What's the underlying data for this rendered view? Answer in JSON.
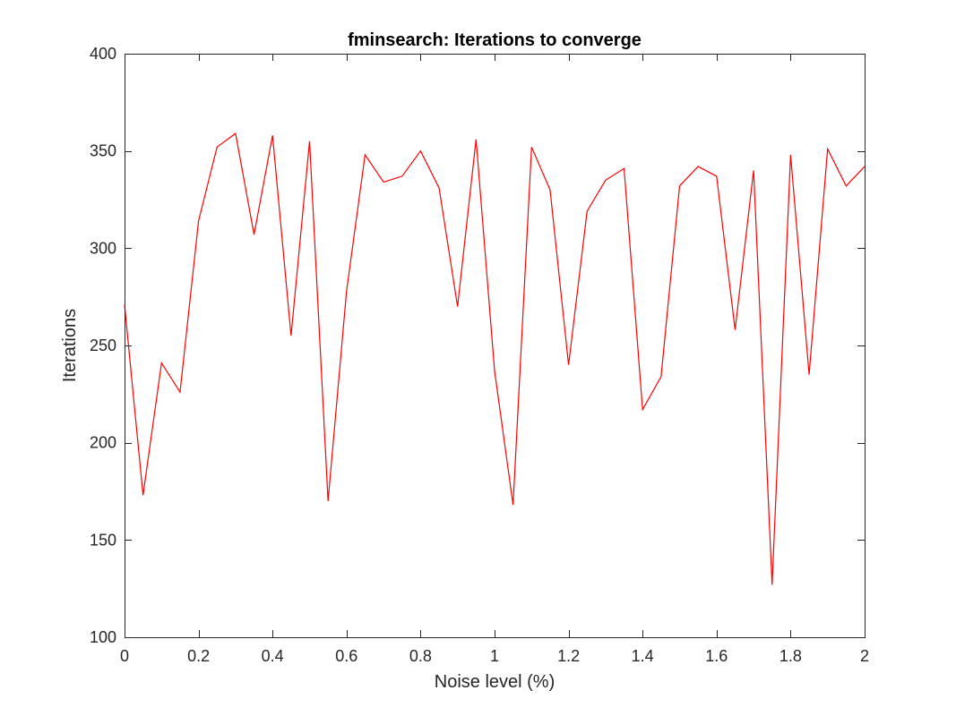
{
  "chart_data": {
    "type": "line",
    "title": "fminsearch: Iterations to converge",
    "xlabel": "Noise level (%)",
    "ylabel": "Iterations",
    "xlim": [
      0,
      2
    ],
    "ylim": [
      100,
      400
    ],
    "xticks": [
      0,
      0.2,
      0.4,
      0.6,
      0.8,
      1,
      1.2,
      1.4,
      1.6,
      1.8,
      2
    ],
    "xtick_labels": [
      "0",
      "0.2",
      "0.4",
      "0.6",
      "0.8",
      "1",
      "1.2",
      "1.4",
      "1.6",
      "1.8",
      "2"
    ],
    "yticks": [
      100,
      150,
      200,
      250,
      300,
      350,
      400
    ],
    "ytick_labels": [
      "100",
      "150",
      "200",
      "250",
      "300",
      "350",
      "400"
    ],
    "grid": false,
    "box": true,
    "series": [
      {
        "color": "#ff0000",
        "x": [
          0,
          0.05,
          0.1,
          0.15,
          0.2,
          0.25,
          0.3,
          0.35,
          0.4,
          0.45,
          0.5,
          0.55,
          0.6,
          0.65,
          0.7,
          0.75,
          0.8,
          0.85,
          0.9,
          0.95,
          1.0,
          1.05,
          1.1,
          1.15,
          1.2,
          1.25,
          1.3,
          1.35,
          1.4,
          1.45,
          1.5,
          1.55,
          1.6,
          1.65,
          1.7,
          1.75,
          1.8,
          1.85,
          1.9,
          1.95,
          2.0
        ],
        "y": [
          271,
          173,
          241,
          226,
          314,
          352,
          359,
          307,
          358,
          255,
          355,
          170,
          278,
          348,
          334,
          337,
          350,
          331,
          270,
          356,
          237,
          168,
          352,
          330,
          240,
          319,
          335,
          341,
          217,
          234,
          332,
          342,
          337,
          258,
          340,
          127,
          348,
          235,
          351,
          332,
          342
        ]
      }
    ]
  }
}
